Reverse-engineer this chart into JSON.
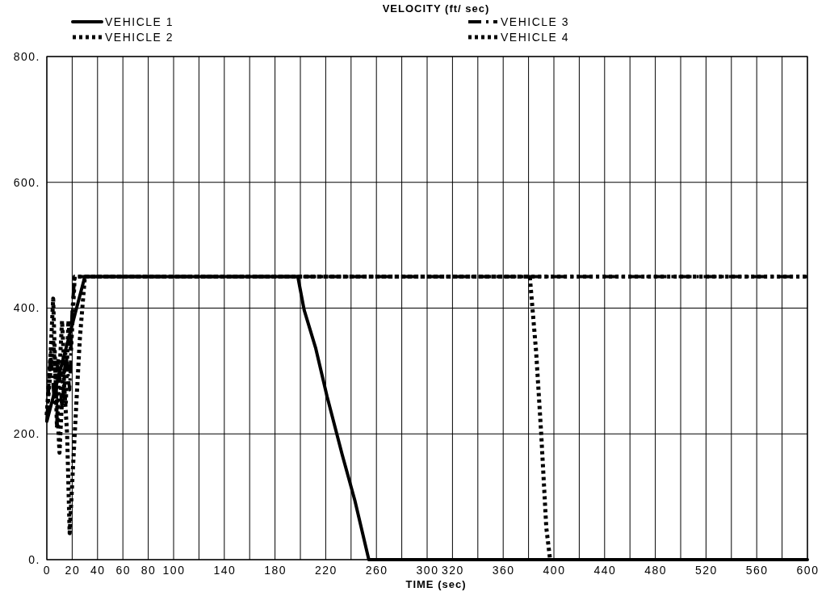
{
  "chart_data": {
    "type": "line",
    "title": "VELOCITY (ft/ sec)",
    "xlabel": "TIME (sec)",
    "xlim": [
      0,
      600
    ],
    "xticks": [
      0,
      20,
      40,
      60,
      80,
      100,
      {
        "value": 120,
        "label": null
      },
      140,
      {
        "value": 160,
        "label": null
      },
      180,
      {
        "value": 200,
        "label": null
      },
      220,
      {
        "value": 240,
        "label": null
      },
      260,
      {
        "value": 280,
        "label": null
      },
      300,
      320,
      {
        "value": 340,
        "label": null
      },
      360,
      {
        "value": 380,
        "label": null
      },
      400,
      {
        "value": 420,
        "label": null
      },
      440,
      {
        "value": 460,
        "label": null
      },
      480,
      {
        "value": 500,
        "label": null
      },
      520,
      {
        "value": 540,
        "label": null
      },
      560,
      {
        "value": 580,
        "label": null
      },
      600
    ],
    "ylim": [
      0,
      800
    ],
    "yticks": [
      {
        "value": 0,
        "label": "0."
      },
      {
        "value": 200,
        "label": "200."
      },
      {
        "value": 400,
        "label": "400."
      },
      {
        "value": 600,
        "label": "600."
      },
      {
        "value": 800,
        "label": "800."
      }
    ],
    "grid": true,
    "legend": "top",
    "series": [
      {
        "name": "VEHICLE 1",
        "color": "#000000",
        "line_style": "solid",
        "x": [
          0,
          30,
          198,
          203,
          212,
          221,
          233,
          243,
          254,
          600
        ],
        "values": [
          220,
          450,
          450,
          397,
          337,
          260,
          167,
          94,
          0,
          0
        ]
      },
      {
        "name": "VEHICLE 2",
        "color": "#000000",
        "line_style": "dotted",
        "x": [
          0,
          3,
          5,
          8,
          10,
          12,
          15,
          17,
          19,
          22,
          381,
          386,
          390,
          394,
          397
        ],
        "values": [
          230,
          330,
          415,
          210,
          300,
          380,
          250,
          380,
          330,
          450,
          450,
          330,
          200,
          51,
          0
        ]
      },
      {
        "name": "VEHICLE 3",
        "color": "#000000",
        "line_style": "dashed",
        "x": [
          0,
          3,
          6,
          9,
          12,
          15,
          18,
          20,
          22,
          600
        ],
        "values": [
          220,
          330,
          250,
          320,
          240,
          330,
          270,
          400,
          450,
          450
        ]
      },
      {
        "name": "VEHICLE 4",
        "color": "#000000",
        "line_style": "dotted",
        "x": [
          0,
          5,
          8,
          10,
          13,
          16,
          18,
          22,
          26,
          30,
          600
        ],
        "values": [
          230,
          350,
          250,
          170,
          300,
          200,
          42,
          200,
          350,
          450,
          450
        ]
      }
    ]
  }
}
